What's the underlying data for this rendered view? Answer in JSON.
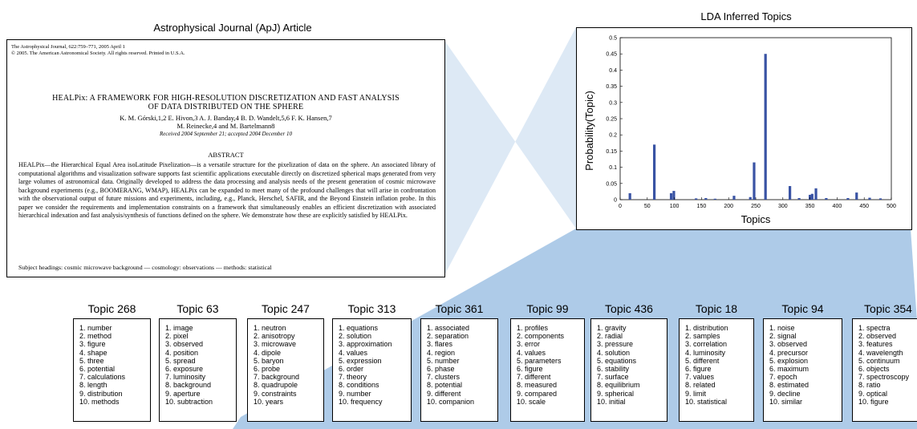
{
  "captions": {
    "article": "Astrophysical Journal (ApJ) Article",
    "chart": "LDA Inferred Topics"
  },
  "article": {
    "journal_line": "The Astrophysical Journal, 622:759–771, 2005 April 1",
    "copyright_line": "© 2005. The American Astronomical Society. All rights reserved. Printed in U.S.A.",
    "title_line1": "HEALPix: A FRAMEWORK FOR HIGH-RESOLUTION DISCRETIZATION AND FAST ANALYSIS",
    "title_line2": "OF DATA DISTRIBUTED ON THE SPHERE",
    "authors_line1": "K. M. Górski,1,2 E. Hivon,3 A. J. Banday,4 B. D. Wandelt,5,6 F. K. Hansen,7",
    "authors_line2": "M. Reinecke,4 and M. Bartelmann8",
    "received": "Received 2004 September 21; accepted 2004 December 10",
    "abstract_heading": "ABSTRACT",
    "abstract": "HEALPix—the Hierarchical Equal Area isoLatitude Pixelization—is a versatile structure for the pixelization of data on the sphere. An associated library of computational algorithms and visualization software supports fast scientific applications executable directly on discretized spherical maps generated from very large volumes of astronomical data. Originally developed to address the data processing and analysis needs of the present generation of cosmic microwave background experiments (e.g., BOOMERANG, WMAP), HEALPix can be expanded to meet many of the profound challenges that will arise in confrontation with the observational output of future missions and experiments, including, e.g., Planck, Herschel, SAFIR, and the Beyond Einstein inflation probe. In this paper we consider the requirements and implementation constraints on a framework that simultaneously enables an efficient discretization with associated hierarchical indexation and fast analysis/synthesis of functions defined on the sphere. We demonstrate how these are explicitly satisfied by HEALPix.",
    "subject_headings": "Subject headings: cosmic microwave background — cosmology: observations — methods: statistical"
  },
  "chart_data": {
    "type": "bar",
    "title": "",
    "xlabel": "Topics",
    "ylabel": "Probability(Topic)",
    "xlim": [
      0,
      500
    ],
    "ylim": [
      0,
      0.5
    ],
    "xticks": [
      0,
      50,
      100,
      150,
      200,
      250,
      300,
      350,
      400,
      450,
      500
    ],
    "yticks": [
      0,
      0.05,
      0.1,
      0.15,
      0.2,
      0.25,
      0.3,
      0.35,
      0.4,
      0.45,
      0.5
    ],
    "bar_color": "#3953a4",
    "x": [
      18,
      63,
      94,
      99,
      140,
      158,
      175,
      210,
      240,
      247,
      268,
      313,
      330,
      350,
      354,
      361,
      380,
      420,
      436,
      460,
      480
    ],
    "values": [
      0.02,
      0.17,
      0.02,
      0.027,
      0.004,
      0.005,
      0.003,
      0.012,
      0.008,
      0.115,
      0.45,
      0.042,
      0.005,
      0.015,
      0.018,
      0.035,
      0.005,
      0.005,
      0.022,
      0.006,
      0.004
    ]
  },
  "topics": [
    {
      "title": "Topic 268",
      "words": [
        "1. number",
        "2. method",
        "3. figure",
        "4. shape",
        "5. three",
        "6. potential",
        "7. calculations",
        "8. length",
        "9. distribution",
        "10. methods"
      ]
    },
    {
      "title": "Topic 63",
      "words": [
        "1. image",
        "2. pixel",
        "3. observed",
        "4. position",
        "5. spread",
        "6. exposure",
        "7. luminosity",
        "8. background",
        "9. aperture",
        "10. subtraction"
      ]
    },
    {
      "title": "Topic 247",
      "words": [
        "1. neutron",
        "2. anisotropy",
        "3. microwave",
        "4. dipole",
        "5. baryon",
        "6. probe",
        "7. background",
        "8. quadrupole",
        "9. constraints",
        "10. years"
      ]
    },
    {
      "title": "Topic 313",
      "words": [
        "1. equations",
        "2. solution",
        "3. approximation",
        "4. values",
        "5. expression",
        "6. order",
        "7. theory",
        "8. conditions",
        "9. number",
        "10. frequency"
      ]
    },
    {
      "title": "Topic 361",
      "words": [
        "1. associated",
        "2. separation",
        "3. flares",
        "4. region",
        "5. number",
        "6. phase",
        "7. clusters",
        "8. potential",
        "9. different",
        "10. companion"
      ]
    },
    {
      "title": "Topic 99",
      "words": [
        "1. profiles",
        "2. components",
        "3. error",
        "4. values",
        "5. parameters",
        "6. figure",
        "7. different",
        "8. measured",
        "9. compared",
        "10. scale"
      ]
    },
    {
      "title": "Topic 436",
      "words": [
        "1. gravity",
        "2. radial",
        "3. pressure",
        "4. solution",
        "5. equations",
        "6. stability",
        "7. surface",
        "8. equilibrium",
        "9. spherical",
        "10. initial"
      ]
    },
    {
      "title": "Topic 18",
      "words": [
        "1. distribution",
        "2. samples",
        "3. correlation",
        "4. luminosity",
        "5. different",
        "6. figure",
        "7. values",
        "8. related",
        "9. limit",
        "10. statistical"
      ]
    },
    {
      "title": "Topic 94",
      "words": [
        "1. noise",
        "2. signal",
        "3. observed",
        "4. precursor",
        "5. explosion",
        "6. maximum",
        "7. epoch",
        "8. estimated",
        "9. decline",
        "10. similar"
      ]
    },
    {
      "title": "Topic 354",
      "words": [
        "1. spectra",
        "2. observed",
        "3. features",
        "4. wavelength",
        "5. continuum",
        "6. objects",
        "7. spectroscopy",
        "8. ratio",
        "9. optical",
        "10. figure"
      ]
    }
  ]
}
